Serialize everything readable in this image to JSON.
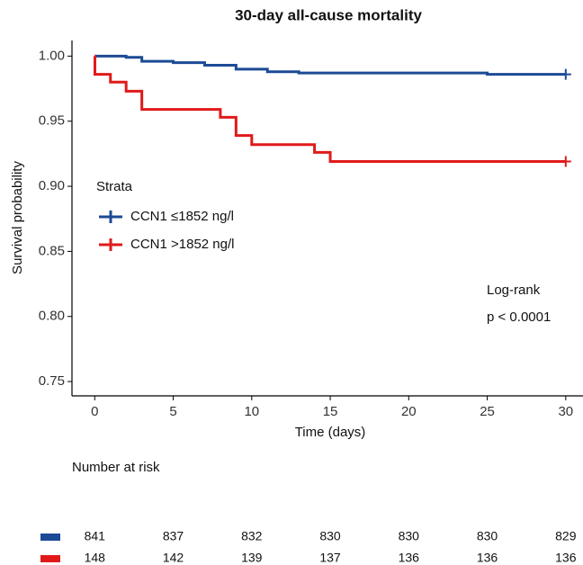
{
  "chart_data": {
    "type": "step",
    "title": "30-day all-cause mortality",
    "x_label": "Time (days)",
    "y_label": "Survival probability",
    "xlim": [
      -1.45,
      31.1
    ],
    "ylim": [
      0.739,
      1.012
    ],
    "xticks": [
      0,
      5,
      10,
      15,
      20,
      25,
      30
    ],
    "yticks": [
      {
        "value": 0.75,
        "label": "0.75"
      },
      {
        "value": 0.8,
        "label": "0.80"
      },
      {
        "value": 0.85,
        "label": "0.85"
      },
      {
        "value": 0.9,
        "label": "0.90"
      },
      {
        "value": 0.95,
        "label": "0.95"
      },
      {
        "value": 1.0,
        "label": "1.00"
      }
    ],
    "grid": false,
    "legend_title": "Strata",
    "series": [
      {
        "name": "CCN1 ≤1852 ng/l",
        "color": "#1c4a96",
        "x": [
          0,
          2,
          3,
          5,
          7,
          9,
          11,
          13,
          25,
          30
        ],
        "values": [
          1.0,
          0.999,
          0.996,
          0.995,
          0.993,
          0.99,
          0.988,
          0.987,
          0.986,
          0.986
        ],
        "censor_x": [
          30
        ]
      },
      {
        "name": "CCN1 >1852 ng/l",
        "color": "#e01a1a",
        "x": [
          0,
          0.01,
          1,
          2,
          3,
          8,
          9,
          10,
          14,
          15,
          30
        ],
        "values": [
          1.0,
          0.986,
          0.98,
          0.973,
          0.959,
          0.953,
          0.939,
          0.932,
          0.926,
          0.919,
          0.919
        ],
        "censor_x": [
          30
        ]
      }
    ],
    "annotations": [
      "Log-rank",
      "p < 0.0001"
    ],
    "risk_table": {
      "title": "Number at risk",
      "rows": [
        [
          841,
          837,
          832,
          830,
          830,
          830,
          829
        ],
        [
          148,
          142,
          139,
          137,
          136,
          136,
          136
        ]
      ]
    }
  }
}
